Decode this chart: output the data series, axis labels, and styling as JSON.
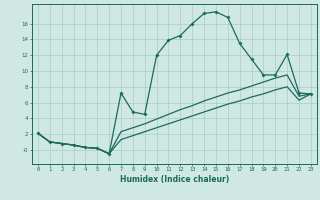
{
  "bg_color": "#d0e8e4",
  "line_color": "#1a6b5a",
  "grid_color": "#a8ccc8",
  "xlabel": "Humidex (Indice chaleur)",
  "xlim": [
    -0.5,
    23.5
  ],
  "ylim": [
    -1.8,
    18.5
  ],
  "xticks": [
    0,
    1,
    2,
    3,
    4,
    5,
    6,
    7,
    8,
    9,
    10,
    11,
    12,
    13,
    14,
    15,
    16,
    17,
    18,
    19,
    20,
    21,
    22,
    23
  ],
  "yticks": [
    0,
    2,
    4,
    6,
    8,
    10,
    12,
    14,
    16
  ],
  "ytick_labels": [
    "-0",
    "2",
    "4",
    "6",
    "8",
    "10",
    "12",
    "14",
    "16"
  ],
  "line1_x": [
    0,
    1,
    2,
    3,
    4,
    5,
    6,
    7,
    8,
    9,
    10,
    11,
    12,
    13,
    14,
    15,
    16,
    17,
    18,
    19,
    20,
    21,
    22,
    23
  ],
  "line1_y": [
    2.1,
    1.0,
    0.8,
    0.6,
    0.3,
    0.2,
    -0.5,
    7.2,
    4.8,
    4.5,
    12.0,
    13.9,
    14.5,
    16.0,
    17.3,
    17.5,
    16.8,
    13.5,
    11.5,
    9.5,
    9.5,
    12.1,
    7.2,
    7.1
  ],
  "line2_x": [
    0,
    1,
    2,
    3,
    4,
    5,
    6,
    7,
    8,
    9,
    10,
    11,
    12,
    13,
    14,
    15,
    16,
    17,
    18,
    19,
    20,
    21,
    22,
    23
  ],
  "line2_y": [
    2.1,
    1.0,
    0.8,
    0.6,
    0.3,
    0.2,
    -0.5,
    2.3,
    2.8,
    3.3,
    3.9,
    4.5,
    5.1,
    5.6,
    6.2,
    6.7,
    7.2,
    7.6,
    8.1,
    8.6,
    9.1,
    9.5,
    6.8,
    7.1
  ],
  "line3_x": [
    0,
    1,
    2,
    3,
    4,
    5,
    6,
    7,
    8,
    9,
    10,
    11,
    12,
    13,
    14,
    15,
    16,
    17,
    18,
    19,
    20,
    21,
    22,
    23
  ],
  "line3_y": [
    2.1,
    1.0,
    0.8,
    0.6,
    0.3,
    0.2,
    -0.5,
    1.3,
    1.8,
    2.3,
    2.8,
    3.3,
    3.8,
    4.3,
    4.8,
    5.3,
    5.8,
    6.2,
    6.7,
    7.1,
    7.6,
    8.0,
    6.3,
    7.1
  ]
}
